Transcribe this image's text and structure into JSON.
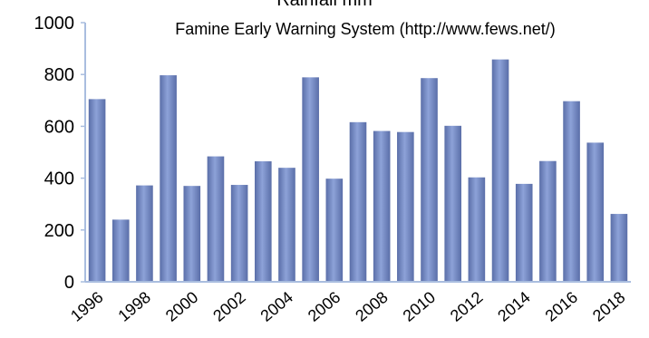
{
  "chart_data": {
    "type": "bar",
    "title": "Rainfall mm",
    "subtitle": "Famine Early Warning System (http://www.fews.net/)",
    "xlabel": "",
    "ylabel": "",
    "ylim": [
      0,
      1000
    ],
    "yticks": [
      0,
      200,
      400,
      600,
      800,
      1000
    ],
    "categories": [
      "1996",
      "1997",
      "1998",
      "1999",
      "2000",
      "2001",
      "2002",
      "2003",
      "2004",
      "2005",
      "2006",
      "2007",
      "2008",
      "2009",
      "2010",
      "2011",
      "2012",
      "2013",
      "2014",
      "2015",
      "2016",
      "2017",
      "2018"
    ],
    "xtick_labels": [
      "1996",
      "1998",
      "2000",
      "2002",
      "2004",
      "2006",
      "2008",
      "2010",
      "2012",
      "2014",
      "2016",
      "2018"
    ],
    "values": [
      705,
      240,
      372,
      797,
      370,
      484,
      374,
      465,
      440,
      789,
      398,
      616,
      582,
      578,
      786,
      602,
      403,
      858,
      378,
      466,
      697,
      537,
      262
    ],
    "grid": false,
    "legend": "none",
    "bar_color": "#8da2d8",
    "bar_shade_color": "#5a6ea8",
    "axis_color": "#a9bddf"
  }
}
